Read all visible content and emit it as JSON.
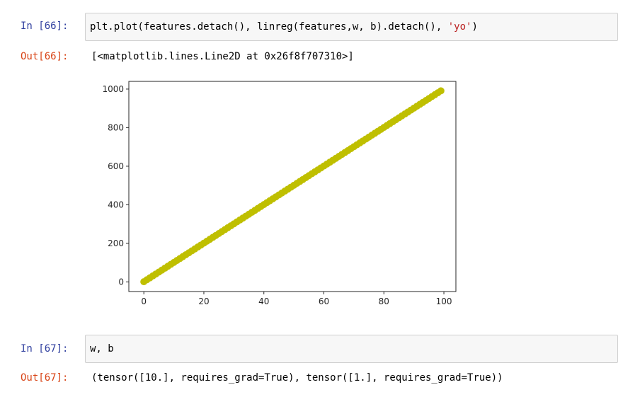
{
  "cells": [
    {
      "in_prompt": "In [66]:",
      "code_parts": [
        "plt.plot(features.detach(), linreg(features,w, b).detach(), ",
        "'yo'",
        ")"
      ],
      "out_prompt": "Out[66]:",
      "output": "[<matplotlib.lines.Line2D at 0x26f8f707310>]"
    },
    {
      "in_prompt": "In [67]:",
      "code": "w, b",
      "out_prompt": "Out[67]:",
      "output": "(tensor([10.], requires_grad=True), tensor([1.], requires_grad=True))"
    }
  ],
  "chart_data": {
    "type": "scatter",
    "marker_color": "#bfbf00",
    "x_ticks": [
      0,
      20,
      40,
      60,
      80,
      100
    ],
    "y_ticks": [
      0,
      200,
      400,
      600,
      800,
      1000
    ],
    "xlim": [
      -5,
      104
    ],
    "ylim": [
      -50,
      1040
    ],
    "series": [
      {
        "x_start": 0,
        "x_end": 99,
        "x_step": 1,
        "slope": 10,
        "intercept": 1
      }
    ]
  }
}
